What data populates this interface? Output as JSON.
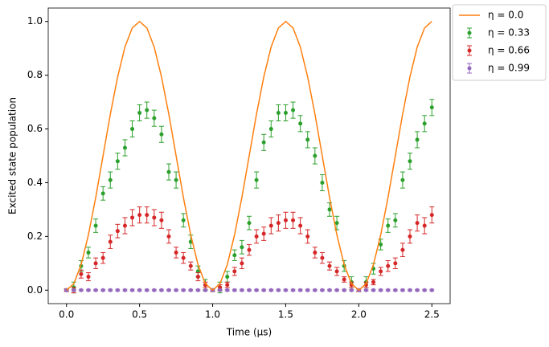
{
  "chart_data": {
    "type": "line_errorbar",
    "xlabel": "Time (µs)",
    "ylabel": "Excited state population",
    "xlim": [
      -0.125,
      2.625
    ],
    "ylim": [
      -0.05,
      1.05
    ],
    "xticks": [
      {
        "value": 0,
        "label": "0.0"
      },
      0.5,
      {
        "value": 1,
        "label": "1.0"
      },
      1.5,
      {
        "value": 2,
        "label": "2.0"
      },
      2.5
    ],
    "yticks": [
      {
        "value": 0,
        "label": "0.0"
      },
      0.2,
      0.4,
      0.6,
      0.8,
      {
        "value": 1,
        "label": "1.0"
      }
    ],
    "grid": false,
    "legend": "outside upper right",
    "x": [
      0,
      0.05,
      0.1,
      0.15,
      0.2,
      0.25,
      0.3,
      0.35,
      0.4,
      0.45,
      0.5,
      0.55,
      0.6,
      0.65,
      0.7,
      0.75,
      0.8,
      0.85,
      0.9,
      0.95,
      1,
      1.05,
      1.1,
      1.15,
      1.2,
      1.25,
      1.3,
      1.35,
      1.4,
      1.45,
      1.5,
      1.55,
      1.6,
      1.65,
      1.7,
      1.75,
      1.8,
      1.85,
      1.9,
      1.95,
      2,
      2.05,
      2.1,
      2.15,
      2.2,
      2.25,
      2.3,
      2.35,
      2.4,
      2.45,
      2.5
    ],
    "series": [
      {
        "name": "η = 0.0",
        "color": "#ff7f0e",
        "style": "line",
        "values": [
          0,
          0.024,
          0.095,
          0.206,
          0.345,
          0.5,
          0.655,
          0.794,
          0.905,
          0.976,
          1,
          0.976,
          0.905,
          0.794,
          0.655,
          0.5,
          0.345,
          0.206,
          0.095,
          0.024,
          0,
          0.024,
          0.095,
          0.206,
          0.345,
          0.5,
          0.655,
          0.794,
          0.905,
          0.976,
          1,
          0.976,
          0.905,
          0.794,
          0.655,
          0.5,
          0.345,
          0.206,
          0.095,
          0.024,
          0,
          0.024,
          0.095,
          0.206,
          0.345,
          0.5,
          0.655,
          0.794,
          0.905,
          0.976,
          1
        ]
      },
      {
        "name": "η = 0.33",
        "color": "#2ca02c",
        "style": "errorbar",
        "values": [
          0,
          0.01,
          0.09,
          0.14,
          0.24,
          0.36,
          0.41,
          0.48,
          0.53,
          0.6,
          0.66,
          0.67,
          0.64,
          0.58,
          0.44,
          0.41,
          0.26,
          0.18,
          0.07,
          0.02,
          0,
          0.01,
          0.05,
          0.13,
          0.16,
          0.25,
          0.41,
          0.55,
          0.6,
          0.66,
          0.66,
          0.67,
          0.62,
          0.56,
          0.5,
          0.4,
          0.3,
          0.25,
          0.09,
          0.03,
          0,
          0.03,
          0.08,
          0.17,
          0.24,
          0.26,
          0.41,
          0.48,
          0.56,
          0.62,
          0.68
        ],
        "errors": [
          0.005,
          0.02,
          0.02,
          0.02,
          0.025,
          0.025,
          0.03,
          0.03,
          0.03,
          0.03,
          0.03,
          0.03,
          0.03,
          0.03,
          0.03,
          0.03,
          0.025,
          0.025,
          0.02,
          0.02,
          0.005,
          0.02,
          0.02,
          0.02,
          0.025,
          0.025,
          0.03,
          0.03,
          0.03,
          0.03,
          0.03,
          0.03,
          0.03,
          0.03,
          0.03,
          0.03,
          0.025,
          0.025,
          0.02,
          0.02,
          0.005,
          0.02,
          0.02,
          0.02,
          0.025,
          0.025,
          0.03,
          0.03,
          0.03,
          0.03,
          0.03
        ]
      },
      {
        "name": "η = 0.66",
        "color": "#d62728",
        "style": "errorbar",
        "values": [
          0,
          0,
          0.06,
          0.05,
          0.1,
          0.12,
          0.18,
          0.22,
          0.24,
          0.27,
          0.28,
          0.28,
          0.27,
          0.26,
          0.2,
          0.14,
          0.12,
          0.09,
          0.05,
          0.02,
          0,
          0.01,
          0.02,
          0.07,
          0.1,
          0.15,
          0.2,
          0.21,
          0.24,
          0.25,
          0.26,
          0.26,
          0.24,
          0.2,
          0.14,
          0.12,
          0.09,
          0.07,
          0.04,
          0.02,
          0,
          0.02,
          0.03,
          0.07,
          0.09,
          0.1,
          0.15,
          0.2,
          0.25,
          0.24,
          0.28
        ],
        "errors": [
          0.005,
          0.01,
          0.015,
          0.015,
          0.02,
          0.02,
          0.025,
          0.025,
          0.03,
          0.03,
          0.03,
          0.03,
          0.03,
          0.03,
          0.025,
          0.02,
          0.02,
          0.015,
          0.015,
          0.01,
          0.005,
          0.01,
          0.01,
          0.015,
          0.02,
          0.02,
          0.025,
          0.025,
          0.03,
          0.03,
          0.03,
          0.03,
          0.03,
          0.025,
          0.02,
          0.02,
          0.015,
          0.015,
          0.01,
          0.01,
          0.005,
          0.01,
          0.01,
          0.015,
          0.02,
          0.02,
          0.025,
          0.025,
          0.03,
          0.03,
          0.03
        ]
      },
      {
        "name": "η = 0.99",
        "color": "#9467bd",
        "style": "errorbar",
        "values": [
          0,
          0,
          0,
          0,
          0,
          0,
          0,
          0,
          0,
          0,
          0,
          0,
          0,
          0,
          0,
          0,
          0,
          0,
          0,
          0,
          0,
          0,
          0,
          0,
          0,
          0,
          0,
          0,
          0,
          0,
          0,
          0,
          0,
          0,
          0,
          0,
          0,
          0,
          0,
          0,
          0,
          0,
          0,
          0,
          0,
          0,
          0,
          0,
          0,
          0,
          0
        ],
        "errors": [
          0.003,
          0.003,
          0.003,
          0.003,
          0.003,
          0.003,
          0.003,
          0.003,
          0.003,
          0.003,
          0.003,
          0.003,
          0.003,
          0.003,
          0.003,
          0.003,
          0.003,
          0.003,
          0.003,
          0.003,
          0.003,
          0.003,
          0.003,
          0.003,
          0.003,
          0.003,
          0.003,
          0.003,
          0.003,
          0.003,
          0.003,
          0.003,
          0.003,
          0.003,
          0.003,
          0.003,
          0.003,
          0.003,
          0.003,
          0.003,
          0.003,
          0.003,
          0.003,
          0.003,
          0.003,
          0.003,
          0.003,
          0.003,
          0.003,
          0.003,
          0.003
        ]
      }
    ]
  }
}
